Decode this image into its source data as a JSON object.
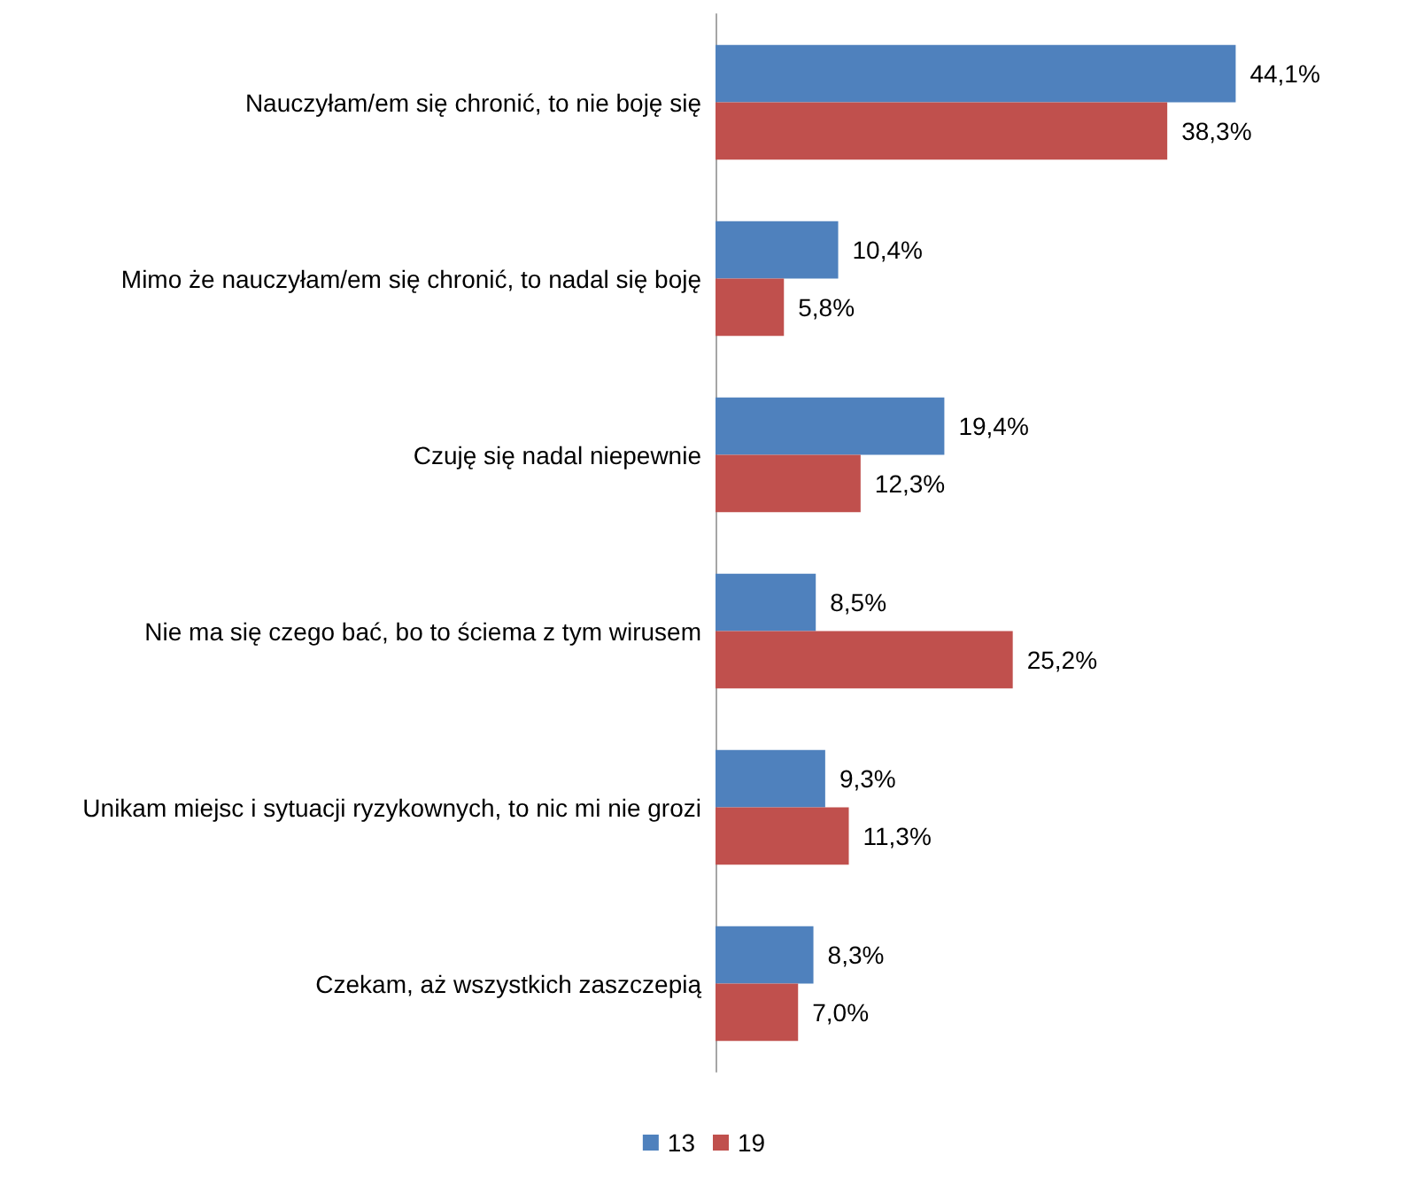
{
  "chart_data": {
    "type": "bar",
    "orientation": "horizontal",
    "categories": [
      "Nauczyłam/em się chronić, to nie boję się",
      "Mimo że nauczyłam/em się chronić, to nadal się boję",
      "Czuję się nadal niepewnie",
      "Nie ma się czego bać, bo to ściema z tym wirusem",
      "Unikam miejsc i sytuacji ryzykownych, to nic mi nie grozi",
      "Czekam, aż wszystkich zaszczepią"
    ],
    "series": [
      {
        "name": "13",
        "color": "#4f81bd",
        "values": [
          44.1,
          10.4,
          19.4,
          8.5,
          9.3,
          8.3
        ],
        "value_labels": [
          "44,1%",
          "10,4%",
          "19,4%",
          "8,5%",
          "9,3%",
          "8,3%"
        ]
      },
      {
        "name": "19",
        "color": "#c0504d",
        "values": [
          38.3,
          5.8,
          12.3,
          25.2,
          11.3,
          7.0
        ],
        "value_labels": [
          "38,3%",
          "5,8%",
          "12,3%",
          "25,2%",
          "11,3%",
          "7,0%"
        ]
      }
    ],
    "legend": "bottom",
    "grid": false
  }
}
